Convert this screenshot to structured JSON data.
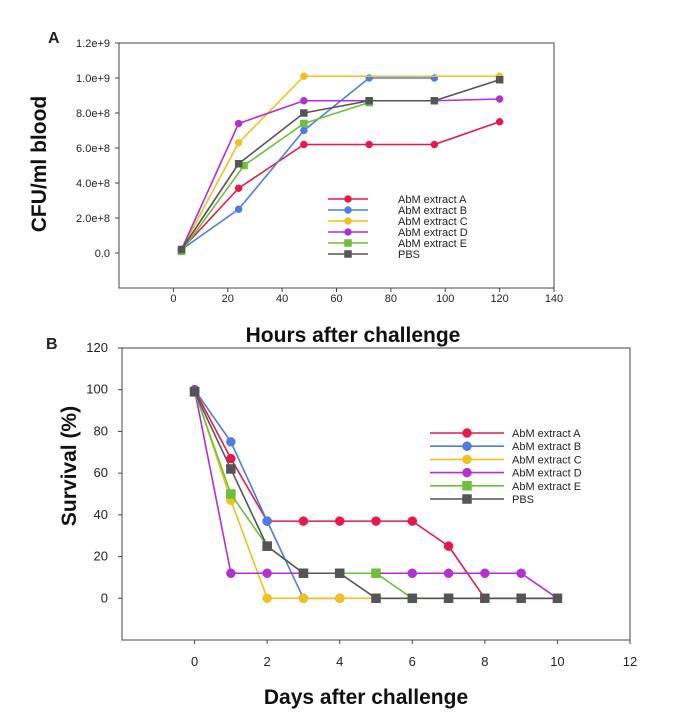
{
  "chart_data": [
    {
      "panel": "A",
      "type": "line",
      "xlabel": "Hours after challenge",
      "ylabel": "CFU/ml blood",
      "xlim": [
        -20,
        140
      ],
      "ylim": [
        -200000000,
        1200000000
      ],
      "xticks": [
        0,
        20,
        40,
        60,
        80,
        100,
        120,
        140
      ],
      "xtick_labels": [
        "0",
        "20",
        "40",
        "60",
        "80",
        "100",
        "120",
        "140"
      ],
      "yticks": [
        0,
        200000000,
        400000000,
        600000000,
        800000000,
        1000000000,
        1200000000
      ],
      "ytick_labels": [
        "0.0",
        "2.0e+8",
        "4.0e+8",
        "6.0e+8",
        "8.0e+8",
        "1.0e+9",
        "1.2e+9"
      ],
      "legend_position": "bottom-right",
      "series": [
        {
          "name": "AbM extract A",
          "color": "#e8194a",
          "marker": "circle",
          "x": [
            3,
            24,
            48,
            72,
            96,
            120
          ],
          "values": [
            20000000,
            370000000,
            620000000,
            620000000,
            620000000,
            750000000
          ]
        },
        {
          "name": "AbM extract B",
          "color": "#4d7be8",
          "marker": "circle",
          "x": [
            3,
            24,
            48,
            72,
            96
          ],
          "values": [
            20000000,
            250000000,
            700000000,
            1000000000,
            1000000000
          ]
        },
        {
          "name": "AbM extract C",
          "color": "#f0c020",
          "marker": "circle",
          "x": [
            3,
            24,
            48,
            120
          ],
          "values": [
            20000000,
            630000000,
            1010000000,
            1010000000
          ]
        },
        {
          "name": "AbM extract D",
          "color": "#b42fd0",
          "marker": "circle",
          "x": [
            3,
            24,
            48,
            72,
            96,
            120
          ],
          "values": [
            20000000,
            740000000,
            870000000,
            870000000,
            870000000,
            880000000
          ]
        },
        {
          "name": "AbM extract E",
          "color": "#6fbf3a",
          "marker": "square",
          "x": [
            3,
            26,
            48,
            72
          ],
          "values": [
            10000000,
            500000000,
            740000000,
            860000000
          ]
        },
        {
          "name": "PBS",
          "color": "#555555",
          "marker": "square",
          "x": [
            3,
            24,
            48,
            72,
            96,
            120
          ],
          "values": [
            20000000,
            510000000,
            800000000,
            870000000,
            870000000,
            990000000
          ]
        }
      ]
    },
    {
      "panel": "B",
      "type": "line",
      "xlabel": "Days after challenge",
      "ylabel": "Survival (%)",
      "xlim": [
        -2,
        12
      ],
      "ylim": [
        -20,
        120
      ],
      "xticks": [
        0,
        2,
        4,
        6,
        8,
        10,
        12
      ],
      "xtick_labels": [
        "0",
        "2",
        "4",
        "6",
        "8",
        "10",
        "12"
      ],
      "yticks": [
        0,
        20,
        40,
        60,
        80,
        100,
        120
      ],
      "ytick_labels": [
        "0",
        "20",
        "40",
        "60",
        "80",
        "100",
        "120"
      ],
      "legend_position": "right",
      "series": [
        {
          "name": "AbM extract A",
          "color": "#e8194a",
          "marker": "circle",
          "x": [
            0,
            1,
            2,
            3,
            4,
            5,
            6,
            7,
            8,
            9,
            10
          ],
          "values": [
            100,
            67,
            37,
            37,
            37,
            37,
            37,
            25,
            0,
            0,
            0
          ]
        },
        {
          "name": "AbM extract B",
          "color": "#4d7be8",
          "marker": "circle",
          "x": [
            0,
            1,
            2,
            3,
            4
          ],
          "values": [
            100,
            75,
            37,
            0,
            0
          ]
        },
        {
          "name": "AbM extract C",
          "color": "#f0c020",
          "marker": "circle",
          "x": [
            0,
            1,
            2,
            3,
            4,
            5,
            6,
            7,
            8,
            9,
            10
          ],
          "values": [
            100,
            47,
            0,
            0,
            0,
            0,
            0,
            0,
            0,
            0,
            0
          ]
        },
        {
          "name": "AbM extract D",
          "color": "#b42fd0",
          "marker": "circle",
          "x": [
            0,
            1,
            2,
            3,
            4,
            5,
            6,
            7,
            8,
            9,
            10
          ],
          "values": [
            100,
            12,
            12,
            12,
            12,
            12,
            12,
            12,
            12,
            12,
            0
          ]
        },
        {
          "name": "AbM extract E",
          "color": "#6fbf3a",
          "marker": "square",
          "x": [
            0,
            1,
            2,
            3,
            4,
            5,
            6
          ],
          "values": [
            99,
            50,
            25,
            12,
            12,
            12,
            0
          ]
        },
        {
          "name": "PBS",
          "color": "#555555",
          "marker": "square",
          "x": [
            0,
            1,
            2,
            3,
            4,
            5,
            6,
            7,
            8,
            9,
            10
          ],
          "values": [
            99,
            62,
            25,
            12,
            12,
            0,
            0,
            0,
            0,
            0,
            0
          ]
        }
      ]
    }
  ]
}
